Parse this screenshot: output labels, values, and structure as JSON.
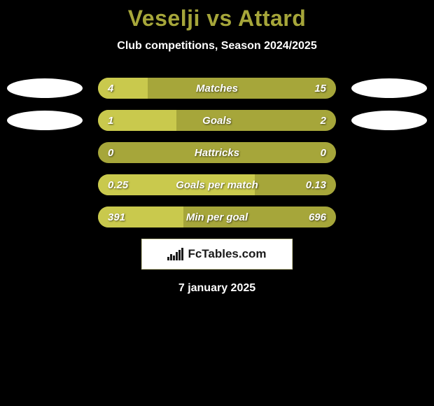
{
  "title": "Veselji vs Attard",
  "subtitle": "Club competitions, Season 2024/2025",
  "date": "7 january 2025",
  "footer_brand": "FcTables.com",
  "colors": {
    "background": "#000000",
    "bar_dark": "#a6a63a",
    "bar_light": "#c9c94d",
    "title_color": "#a6a63a",
    "text_color": "#ffffff",
    "ellipse_color": "#ffffff"
  },
  "bars": [
    {
      "label": "Matches",
      "left_val": "4",
      "right_val": "15",
      "left_pct": 21,
      "show_left_ellipse": true,
      "show_right_ellipse": true
    },
    {
      "label": "Goals",
      "left_val": "1",
      "right_val": "2",
      "left_pct": 33,
      "show_left_ellipse": true,
      "show_right_ellipse": true
    },
    {
      "label": "Hattricks",
      "left_val": "0",
      "right_val": "0",
      "left_pct": 0,
      "show_left_ellipse": false,
      "show_right_ellipse": false
    },
    {
      "label": "Goals per match",
      "left_val": "0.25",
      "right_val": "0.13",
      "left_pct": 66,
      "show_left_ellipse": false,
      "show_right_ellipse": false
    },
    {
      "label": "Min per goal",
      "left_val": "391",
      "right_val": "696",
      "left_pct": 36,
      "show_left_ellipse": false,
      "show_right_ellipse": false
    }
  ]
}
